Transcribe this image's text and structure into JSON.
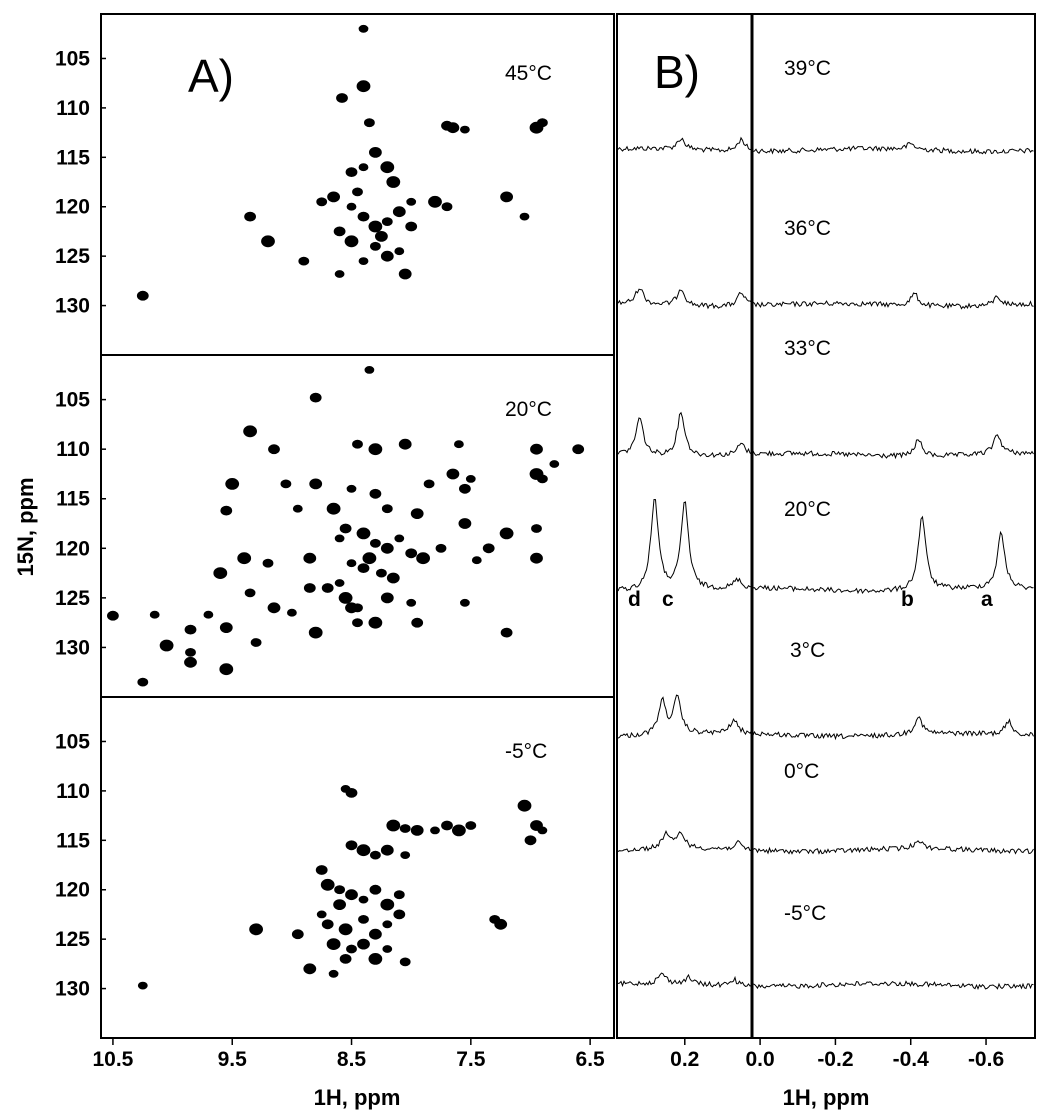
{
  "chart_data": [
    {
      "type": "scatter",
      "panel": "A)",
      "xlabel": "1H, ppm",
      "ylabel": "15N, ppm",
      "x_ticks": [
        "10.5",
        "9.5",
        "8.5",
        "7.5",
        "6.5"
      ],
      "x_tick_values": [
        10.5,
        9.5,
        8.5,
        7.5,
        6.5
      ],
      "y_ticks": [
        "105",
        "110",
        "115",
        "120",
        "125",
        "130"
      ],
      "y_tick_values": [
        105,
        110,
        115,
        120,
        125,
        130
      ],
      "xlim": [
        10.6,
        6.3
      ],
      "ylim": [
        100.5,
        135
      ],
      "subpanels": [
        {
          "temperature": "45°C",
          "peaks": [
            [
              8.4,
              102
            ],
            [
              8.58,
              109
            ],
            [
              8.4,
              107.8
            ],
            [
              8.35,
              111.5
            ],
            [
              7.65,
              112
            ],
            [
              7.55,
              112.2
            ],
            [
              7.7,
              111.8
            ],
            [
              6.95,
              112
            ],
            [
              6.9,
              111.5
            ],
            [
              8.3,
              114.5
            ],
            [
              8.4,
              116
            ],
            [
              8.5,
              116.5
            ],
            [
              8.2,
              116
            ],
            [
              8.75,
              119.5
            ],
            [
              8.65,
              119
            ],
            [
              8.5,
              120
            ],
            [
              8.4,
              121
            ],
            [
              8.3,
              122
            ],
            [
              8.2,
              121.5
            ],
            [
              8.1,
              120.5
            ],
            [
              8.0,
              119.5
            ],
            [
              8.6,
              122.5
            ],
            [
              8.5,
              123.5
            ],
            [
              8.3,
              124
            ],
            [
              8.2,
              125
            ],
            [
              8.4,
              125.5
            ],
            [
              8.0,
              122
            ],
            [
              7.8,
              119.5
            ],
            [
              7.7,
              120
            ],
            [
              8.05,
              126.8
            ],
            [
              8.6,
              126.8
            ],
            [
              9.35,
              121
            ],
            [
              9.2,
              123.5
            ],
            [
              8.9,
              125.5
            ],
            [
              7.2,
              119
            ],
            [
              7.05,
              121
            ],
            [
              10.25,
              129
            ],
            [
              8.15,
              117.5
            ],
            [
              8.45,
              118.5
            ],
            [
              8.25,
              123
            ],
            [
              8.1,
              124.5
            ]
          ]
        },
        {
          "temperature": "20°C",
          "peaks": [
            [
              8.35,
              102
            ],
            [
              8.8,
              104.8
            ],
            [
              9.35,
              108.2
            ],
            [
              8.45,
              109.5
            ],
            [
              8.05,
              109.5
            ],
            [
              7.6,
              109.5
            ],
            [
              9.15,
              110
            ],
            [
              8.3,
              110
            ],
            [
              7.85,
              113.5
            ],
            [
              7.65,
              112.5
            ],
            [
              7.5,
              113
            ],
            [
              7.55,
              114
            ],
            [
              6.95,
              112.5
            ],
            [
              6.9,
              113
            ],
            [
              6.95,
              110
            ],
            [
              6.8,
              111.5
            ],
            [
              6.6,
              110
            ],
            [
              9.5,
              113.5
            ],
            [
              9.05,
              113.5
            ],
            [
              8.8,
              113.5
            ],
            [
              8.5,
              114
            ],
            [
              8.3,
              114.5
            ],
            [
              8.65,
              116
            ],
            [
              8.2,
              116
            ],
            [
              7.95,
              116.5
            ],
            [
              8.95,
              116
            ],
            [
              9.55,
              116.2
            ],
            [
              9.4,
              121
            ],
            [
              9.2,
              121.5
            ],
            [
              8.85,
              121
            ],
            [
              8.6,
              119
            ],
            [
              8.55,
              118
            ],
            [
              8.4,
              118.5
            ],
            [
              8.3,
              119.5
            ],
            [
              8.2,
              120
            ],
            [
              8.1,
              119
            ],
            [
              8.0,
              120.5
            ],
            [
              7.9,
              121
            ],
            [
              7.75,
              120
            ],
            [
              7.55,
              117.5
            ],
            [
              7.45,
              121.2
            ],
            [
              7.35,
              120
            ],
            [
              7.2,
              118.5
            ],
            [
              6.95,
              118
            ],
            [
              6.95,
              121
            ],
            [
              8.5,
              121.5
            ],
            [
              8.4,
              122
            ],
            [
              8.35,
              121
            ],
            [
              8.25,
              122.5
            ],
            [
              8.15,
              123
            ],
            [
              8.6,
              123.5
            ],
            [
              8.7,
              124
            ],
            [
              8.55,
              125
            ],
            [
              8.45,
              126
            ],
            [
              8.2,
              125
            ],
            [
              8.0,
              125.5
            ],
            [
              7.95,
              127.5
            ],
            [
              8.3,
              127.5
            ],
            [
              8.45,
              127.5
            ],
            [
              8.5,
              126
            ],
            [
              7.55,
              125.5
            ],
            [
              7.2,
              128.5
            ],
            [
              9.6,
              122.5
            ],
            [
              9.35,
              124.5
            ],
            [
              9.15,
              126
            ],
            [
              9.0,
              126.5
            ],
            [
              8.85,
              124
            ],
            [
              8.8,
              128.5
            ],
            [
              9.3,
              129.5
            ],
            [
              9.55,
              128
            ],
            [
              9.7,
              126.7
            ],
            [
              9.85,
              128.2
            ],
            [
              10.05,
              129.8
            ],
            [
              9.85,
              130.5
            ],
            [
              9.85,
              131.5
            ],
            [
              10.15,
              126.7
            ],
            [
              10.5,
              126.8
            ],
            [
              9.55,
              132.2
            ],
            [
              10.25,
              133.5
            ]
          ]
        },
        {
          "temperature": "-5°C",
          "peaks": [
            [
              8.55,
              109.8
            ],
            [
              8.5,
              110.2
            ],
            [
              8.15,
              113.5
            ],
            [
              8.05,
              113.8
            ],
            [
              7.95,
              114
            ],
            [
              7.8,
              114
            ],
            [
              7.7,
              113.5
            ],
            [
              7.6,
              114
            ],
            [
              7.5,
              113.5
            ],
            [
              6.95,
              113.5
            ],
            [
              6.9,
              114
            ],
            [
              8.5,
              115.5
            ],
            [
              8.4,
              116
            ],
            [
              8.3,
              116.5
            ],
            [
              8.2,
              116
            ],
            [
              8.05,
              116.5
            ],
            [
              8.75,
              118
            ],
            [
              8.7,
              119.5
            ],
            [
              8.6,
              120
            ],
            [
              8.5,
              120.5
            ],
            [
              8.4,
              121
            ],
            [
              8.3,
              120
            ],
            [
              8.2,
              121.5
            ],
            [
              8.1,
              120.5
            ],
            [
              8.6,
              121.5
            ],
            [
              8.75,
              122.5
            ],
            [
              8.7,
              123.5
            ],
            [
              8.55,
              124
            ],
            [
              8.4,
              123
            ],
            [
              8.3,
              124.5
            ],
            [
              8.2,
              123.5
            ],
            [
              8.1,
              122.5
            ],
            [
              8.65,
              125.5
            ],
            [
              8.5,
              126
            ],
            [
              8.4,
              125.5
            ],
            [
              8.2,
              126
            ],
            [
              8.55,
              127
            ],
            [
              8.3,
              127
            ],
            [
              8.05,
              127.3
            ],
            [
              8.85,
              128
            ],
            [
              8.65,
              128.5
            ],
            [
              8.95,
              124.5
            ],
            [
              9.3,
              124
            ],
            [
              7.3,
              123
            ],
            [
              7.25,
              123.5
            ],
            [
              10.25,
              129.7
            ],
            [
              7.0,
              115
            ],
            [
              7.05,
              111.5
            ]
          ]
        }
      ]
    },
    {
      "type": "line",
      "panel": "B)",
      "xlabel": "1H, ppm",
      "x_ticks": [
        "0.2",
        "0.0",
        "-0.2",
        "-0.4",
        "-0.6"
      ],
      "x_tick_values": [
        0.2,
        0.0,
        -0.2,
        -0.4,
        -0.6
      ],
      "xlim": [
        0.38,
        -0.73
      ],
      "peak_labels": [
        {
          "label": "d",
          "ppm": 0.28
        },
        {
          "label": "c",
          "ppm": 0.2
        },
        {
          "label": "b",
          "ppm": -0.42
        },
        {
          "label": "a",
          "ppm": -0.63
        }
      ],
      "series": [
        {
          "temperature": "39°C",
          "peaks": [
            {
              "ppm": 0.21,
              "height": 0.5
            },
            {
              "ppm": 0.05,
              "height": 0.55
            },
            {
              "ppm": -0.4,
              "height": 0.25
            }
          ]
        },
        {
          "temperature": "36°C",
          "peaks": [
            {
              "ppm": 0.32,
              "height": 0.75
            },
            {
              "ppm": 0.21,
              "height": 0.8
            },
            {
              "ppm": 0.05,
              "height": 0.6
            },
            {
              "ppm": -0.41,
              "height": 0.55
            },
            {
              "ppm": -0.63,
              "height": 0.4
            }
          ]
        },
        {
          "temperature": "33°C",
          "peaks": [
            {
              "ppm": 0.32,
              "height": 1.7
            },
            {
              "ppm": 0.21,
              "height": 2.0
            },
            {
              "ppm": 0.05,
              "height": 0.5
            },
            {
              "ppm": -0.42,
              "height": 0.75
            },
            {
              "ppm": -0.63,
              "height": 0.9
            }
          ]
        },
        {
          "temperature": "20°C",
          "peaks": [
            {
              "ppm": 0.28,
              "height": 4.2
            },
            {
              "ppm": 0.2,
              "height": 4.0
            },
            {
              "ppm": 0.06,
              "height": 0.4
            },
            {
              "ppm": -0.43,
              "height": 3.4
            },
            {
              "ppm": -0.64,
              "height": 2.5
            }
          ]
        },
        {
          "temperature": "3°C",
          "peaks": [
            {
              "ppm": 0.26,
              "height": 1.5
            },
            {
              "ppm": 0.22,
              "height": 1.6
            },
            {
              "ppm": 0.07,
              "height": 0.6
            },
            {
              "ppm": -0.42,
              "height": 0.8
            },
            {
              "ppm": -0.66,
              "height": 0.6
            }
          ]
        },
        {
          "temperature": "0°C",
          "peaks": [
            {
              "ppm": 0.25,
              "height": 0.7
            },
            {
              "ppm": 0.21,
              "height": 0.7
            },
            {
              "ppm": 0.06,
              "height": 0.3
            },
            {
              "ppm": -0.42,
              "height": 0.4
            }
          ]
        },
        {
          "temperature": "-5°C",
          "peaks": [
            {
              "ppm": 0.26,
              "height": 0.45
            },
            {
              "ppm": 0.19,
              "height": 0.3
            },
            {
              "ppm": 0.07,
              "height": 0.3
            }
          ]
        }
      ]
    }
  ]
}
